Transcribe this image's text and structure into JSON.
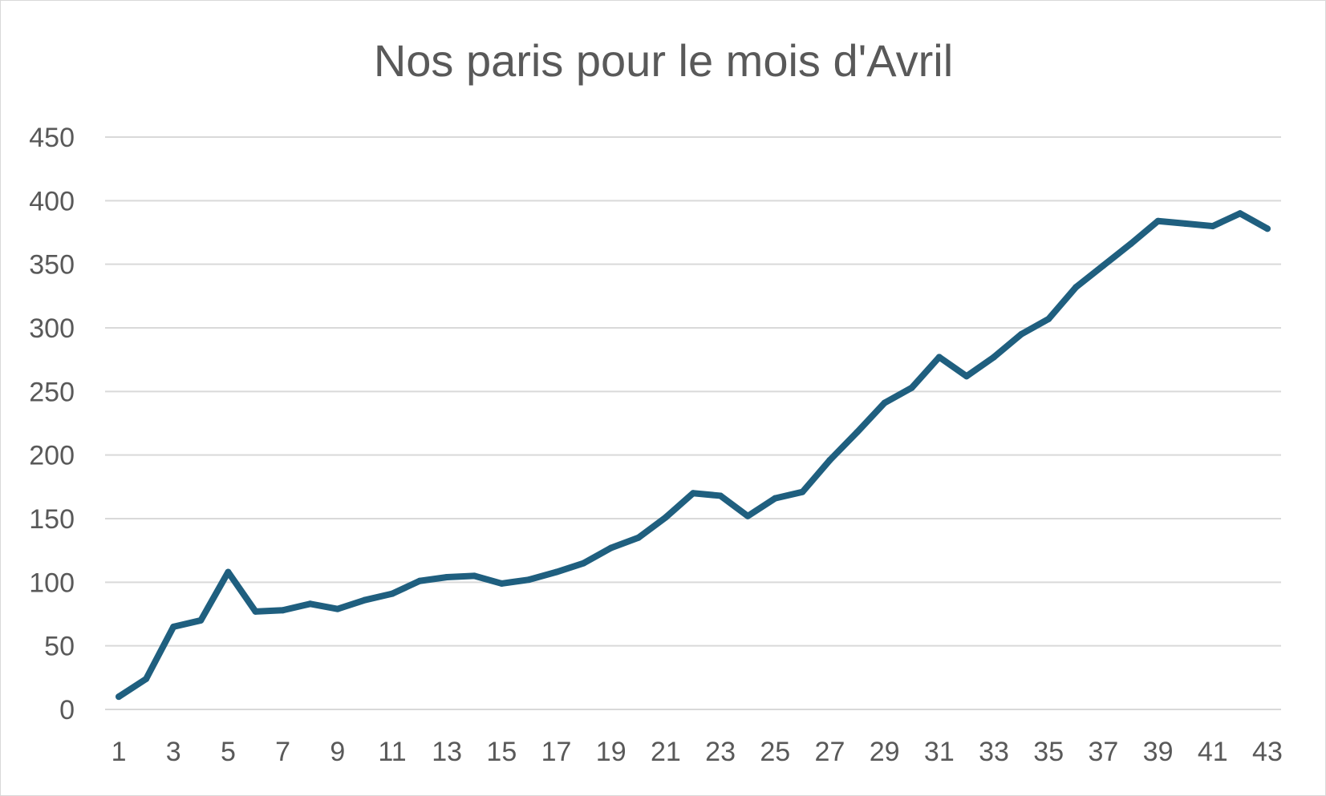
{
  "chart_data": {
    "type": "line",
    "title": "Nos paris pour le mois d'Avril",
    "xlabel": "",
    "ylabel": "",
    "ylim": [
      0,
      450
    ],
    "yticks": [
      0,
      50,
      100,
      150,
      200,
      250,
      300,
      350,
      400,
      450
    ],
    "x": [
      1,
      2,
      3,
      4,
      5,
      6,
      7,
      8,
      9,
      10,
      11,
      12,
      13,
      14,
      15,
      16,
      17,
      18,
      19,
      20,
      21,
      22,
      23,
      24,
      25,
      26,
      27,
      28,
      29,
      30,
      31,
      32,
      33,
      34,
      35,
      36,
      37,
      38,
      39,
      40,
      41,
      42,
      43
    ],
    "xticks": [
      1,
      3,
      5,
      7,
      9,
      11,
      13,
      15,
      17,
      19,
      21,
      23,
      25,
      27,
      29,
      31,
      33,
      35,
      37,
      39,
      41,
      43
    ],
    "grid": true,
    "legend": "none",
    "series": [
      {
        "color": "#1f5f7f",
        "values": [
          10,
          24,
          65,
          70,
          108,
          77,
          78,
          83,
          79,
          86,
          91,
          101,
          104,
          105,
          99,
          102,
          108,
          115,
          127,
          135,
          151,
          170,
          168,
          152,
          166,
          171,
          196,
          218,
          241,
          253,
          277,
          262,
          277,
          295,
          307,
          332,
          349,
          366,
          384,
          382,
          380,
          390,
          378
        ]
      }
    ]
  }
}
